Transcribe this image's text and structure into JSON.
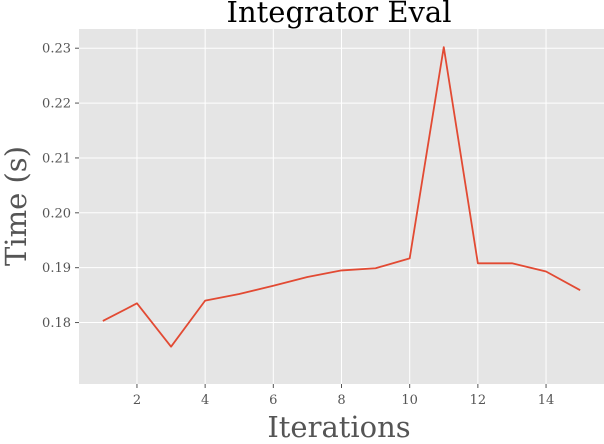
{
  "chart_data": {
    "type": "line",
    "title": "Integrator Eval",
    "xlabel": "Iterations",
    "ylabel": "Time (s)",
    "x": [
      1,
      2,
      3,
      4,
      5,
      6,
      7,
      8,
      9,
      10,
      11,
      12,
      13,
      14,
      15
    ],
    "series": [
      {
        "values": [
          0.1803,
          0.1835,
          0.1756,
          0.184,
          0.1852,
          0.1867,
          0.1883,
          0.1895,
          0.1899,
          0.1917,
          0.2302,
          0.1908,
          0.1908,
          0.1893,
          0.1859
        ],
        "color": "#e24a33"
      }
    ],
    "xlim": [
      0.3,
      15.7
    ],
    "ylim": [
      0.1688,
      0.2335
    ],
    "xticks": [
      2,
      4,
      6,
      8,
      10,
      12,
      14
    ],
    "xtick_labels": [
      "2",
      "4",
      "6",
      "8",
      "10",
      "12",
      "14"
    ],
    "yticks": [
      0.18,
      0.19,
      0.2,
      0.21,
      0.22,
      0.23
    ],
    "ytick_labels": [
      "0.18",
      "0.19",
      "0.20",
      "0.21",
      "0.22",
      "0.23"
    ],
    "grid": true,
    "background": "#e5e5e5",
    "grid_color": "#ffffff"
  }
}
